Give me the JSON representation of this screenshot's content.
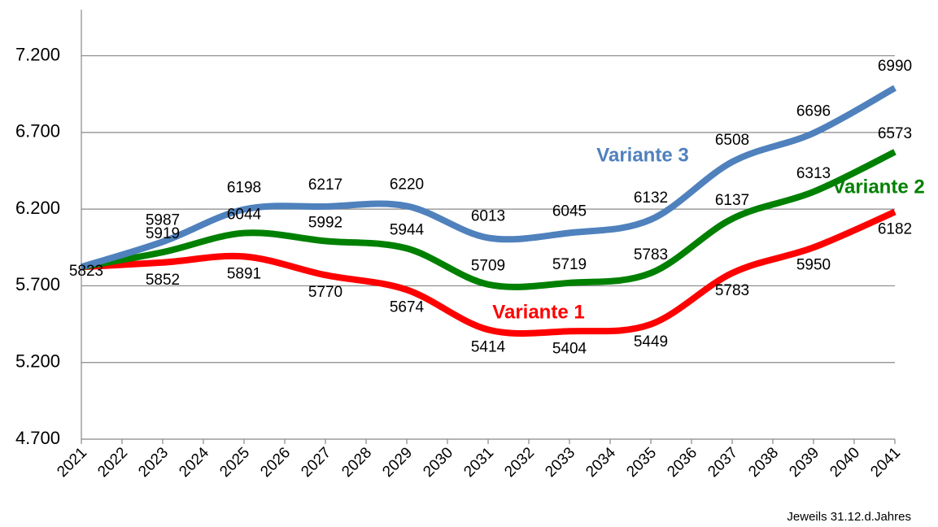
{
  "chart_data": {
    "type": "line",
    "x": [
      2021,
      2023,
      2025,
      2027,
      2029,
      2031,
      2033,
      2035,
      2037,
      2039,
      2041
    ],
    "xlim": [
      2021,
      2041
    ],
    "xticks": [
      2021,
      2022,
      2023,
      2024,
      2025,
      2026,
      2027,
      2028,
      2029,
      2030,
      2031,
      2032,
      2033,
      2034,
      2035,
      2036,
      2037,
      2038,
      2039,
      2040,
      2041
    ],
    "ylim": [
      4700,
      7500
    ],
    "yticks": [
      {
        "value": 4700,
        "label": "4.700"
      },
      {
        "value": 5200,
        "label": "5.200"
      },
      {
        "value": 5700,
        "label": "5.700"
      },
      {
        "value": 6200,
        "label": "6.200"
      },
      {
        "value": 6700,
        "label": "6.700"
      },
      {
        "value": 7200,
        "label": "7.200"
      }
    ],
    "grid": true,
    "series": [
      {
        "name": "Variante 1",
        "color": "#ff0000",
        "values": [
          5823,
          5852,
          5891,
          5770,
          5674,
          5414,
          5404,
          5449,
          5783,
          5950,
          6182
        ]
      },
      {
        "name": "Variante 2",
        "color": "#008000",
        "values": [
          5823,
          5919,
          6044,
          5992,
          5944,
          5709,
          5719,
          5783,
          6137,
          6313,
          6573
        ]
      },
      {
        "name": "Variante 3",
        "color": "#4f81bd",
        "values": [
          5823,
          5987,
          6198,
          6217,
          6220,
          6013,
          6045,
          6132,
          6508,
          6696,
          6990
        ]
      }
    ],
    "footnote": "Jeweils 31.12.d.Jahres"
  }
}
